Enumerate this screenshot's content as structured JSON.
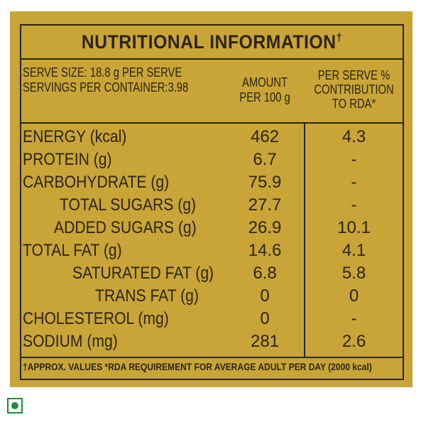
{
  "panel": {
    "title": "NUTRITIONAL INFORMATION",
    "title_mark": "†",
    "serve_size": "SERVE SIZE: 18.8 g PER SERVE",
    "servings": "SERVINGS PER CONTAINER:3.98",
    "col_amount_1": "AMOUNT",
    "col_amount_2": "PER 100 g",
    "col_rda_1": "PER SERVE %",
    "col_rda_2": "CONTRIBUTION",
    "col_rda_3": "TO RDA*"
  },
  "rows": [
    {
      "name": "ENERGY (kcal)",
      "amount": "462",
      "rda": "4.3"
    },
    {
      "name": "PROTEIN (g)",
      "amount": "6.7",
      "rda": "-"
    },
    {
      "name": "CARBOHYDRATE (g)",
      "amount": "75.9",
      "rda": "-"
    },
    {
      "name": "TOTAL SUGARS (g)",
      "amount": "27.7",
      "rda": "-"
    },
    {
      "name": "ADDED SUGARS (g)",
      "amount": "26.9",
      "rda": "10.1"
    },
    {
      "name": "TOTAL FAT (g)",
      "amount": "14.6",
      "rda": "4.1"
    },
    {
      "name": "SATURATED FAT (g)",
      "amount": "6.8",
      "rda": "5.8"
    },
    {
      "name": "TRANS FAT (g)",
      "amount": "0",
      "rda": "0"
    },
    {
      "name": "CHOLESTEROL (mg)",
      "amount": "0",
      "rda": "-"
    },
    {
      "name": "SODIUM (mg)",
      "amount": "281",
      "rda": "2.6"
    }
  ],
  "footnote": "†APPROX. VALUES *RDA REQUIREMENT FOR AVERAGE ADULT PER DAY (2000 kcal)",
  "colors": {
    "label_bg": "#c9a437",
    "ink": "#2b2514",
    "veg_mark": "#1e8a3c"
  },
  "icons": {
    "veg_mark": "veg-symbol-icon"
  }
}
